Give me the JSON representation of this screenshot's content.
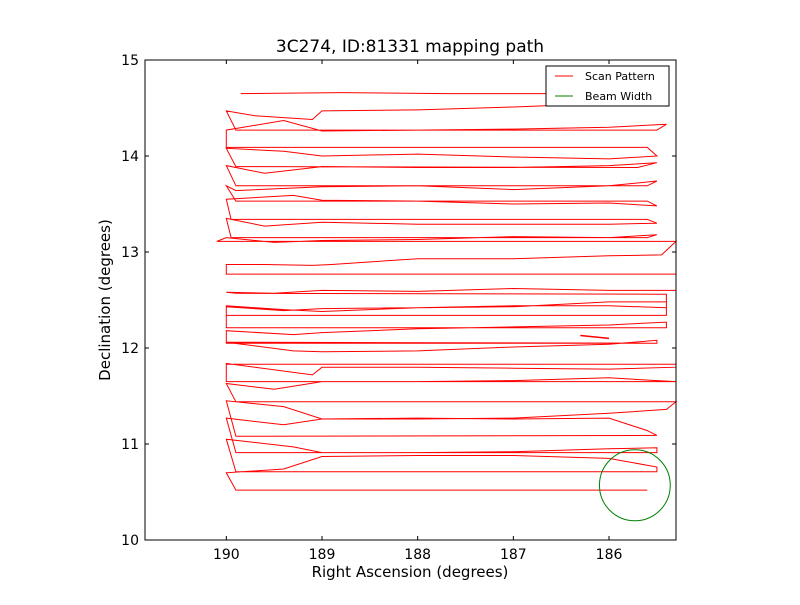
{
  "chart_data": {
    "type": "line",
    "title": "3C274, ID:81331 mapping path",
    "xlabel": "Right Ascension (degrees)",
    "ylabel": "Declination (degrees)",
    "xlim": [
      190.85,
      185.3
    ],
    "ylim": [
      10,
      15
    ],
    "x_inverted": true,
    "x_ticks": [
      190,
      189,
      188,
      187,
      186
    ],
    "y_ticks": [
      10,
      11,
      12,
      13,
      14,
      15
    ],
    "grid": false,
    "legend": {
      "placement": "top-right",
      "entries": [
        {
          "label": "Scan Pattern",
          "color": "#ff0000"
        },
        {
          "label": "Beam Width",
          "color": "#008000"
        }
      ]
    },
    "series": [
      {
        "name": "Scan Pattern",
        "color": "#ff0000",
        "x": [
          189.85,
          188.8,
          187.7,
          186.7,
          185.5,
          185.4,
          186.0,
          187.0,
          188.0,
          189.0,
          189.1,
          189.7,
          190.0,
          189.9,
          185.5,
          185.4,
          186.0,
          187.0,
          188.0,
          189.0,
          189.4,
          190.0,
          190.0,
          185.6,
          185.5,
          186.0,
          187.0,
          188.0,
          189.0,
          189.4,
          190.0,
          189.9,
          185.7,
          185.5,
          186.0,
          187.0,
          188.0,
          189.0,
          189.6,
          190.0,
          189.9,
          185.6,
          185.5,
          186.0,
          187.0,
          188.0,
          189.0,
          189.9,
          190.0,
          189.9,
          185.6,
          185.5,
          186.0,
          187.0,
          188.0,
          189.0,
          189.3,
          190.0,
          189.95,
          185.6,
          185.5,
          186.0,
          187.0,
          188.0,
          189.0,
          189.6,
          190.0,
          189.95,
          185.6,
          185.5,
          186.0,
          187.0,
          188.0,
          189.0,
          189.5,
          190.0,
          190.1,
          185.3,
          185.45,
          186.0,
          187.0,
          188.0,
          188.9,
          189.1,
          189.6,
          190.0,
          190.0,
          185.3,
          185.3,
          186.0,
          187.0,
          188.0,
          189.0,
          189.5,
          190.0,
          189.9,
          185.4,
          185.4,
          186.0,
          187.0,
          188.0,
          189.0,
          189.4,
          190.0,
          190.0,
          185.4,
          185.4,
          186.0,
          187.0,
          188.0,
          189.0,
          189.4,
          190.0,
          190.0,
          185.4,
          185.4,
          186.0,
          187.0,
          188.0,
          189.0,
          189.3,
          190.0,
          190.0,
          185.5,
          185.5,
          186.0,
          187.0,
          188.0,
          189.0,
          189.3,
          190.0,
          185.6
        ],
        "y": [
          14.65,
          14.66,
          14.65,
          14.65,
          14.66,
          14.52,
          14.55,
          14.51,
          14.48,
          14.47,
          14.38,
          14.42,
          14.47,
          14.27,
          14.27,
          14.33,
          14.3,
          14.28,
          14.27,
          14.26,
          14.37,
          14.27,
          14.09,
          14.09,
          14.0,
          13.97,
          13.99,
          14.02,
          14.0,
          14.05,
          14.08,
          13.89,
          13.88,
          13.93,
          13.9,
          13.88,
          13.88,
          13.89,
          13.82,
          13.9,
          13.69,
          13.69,
          13.74,
          13.69,
          13.65,
          13.69,
          13.68,
          13.64,
          13.69,
          13.53,
          13.53,
          13.48,
          13.51,
          13.5,
          13.53,
          13.54,
          13.59,
          13.55,
          13.34,
          13.34,
          13.3,
          13.29,
          13.29,
          13.29,
          13.31,
          13.27,
          13.35,
          13.15,
          13.15,
          13.18,
          13.15,
          13.16,
          13.13,
          13.12,
          13.1,
          13.15,
          13.11,
          13.11,
          12.97,
          12.96,
          12.93,
          12.93,
          12.87,
          12.86,
          12.87,
          12.87,
          12.77,
          12.77,
          12.6,
          12.6,
          12.62,
          12.59,
          12.6,
          12.57,
          12.58,
          12.57,
          12.56,
          12.42,
          12.44,
          12.44,
          12.42,
          12.38,
          12.4,
          12.44,
          12.34,
          12.34,
          12.48,
          12.48,
          12.43,
          12.42,
          12.41,
          12.39,
          12.43,
          12.21,
          12.21,
          12.27,
          12.24,
          12.22,
          12.2,
          12.16,
          12.14,
          12.18,
          12.05,
          12.05,
          12.08,
          12.04,
          12.01,
          11.97,
          11.96,
          11.97,
          12.06,
          12.05
        ],
        "extra_segments": [
          {
            "x": [
              190.0,
              185.3,
              185.3,
              186.0,
              187.0,
              188.0,
              189.0,
              189.1,
              190.0,
              190.0,
              185.3,
              185.5,
              186.0,
              187.0,
              188.0,
              189.0,
              189.5,
              190.0,
              189.9,
              185.3,
              185.4,
              186.0,
              187.0,
              188.0,
              189.0,
              189.4,
              190.0,
              189.9,
              185.5,
              185.6,
              186.0,
              187.0,
              188.0,
              189.0,
              189.4,
              190.0,
              189.9,
              185.5,
              185.5,
              186.0,
              187.0,
              188.0,
              189.0,
              189.3,
              190.0,
              189.9,
              185.5,
              185.5,
              186.0,
              187.0,
              188.0,
              189.0,
              189.4,
              190.0,
              189.9,
              185.6
            ],
            "y": [
              11.83,
              11.83,
              11.8,
              11.78,
              11.79,
              11.8,
              11.8,
              11.72,
              11.84,
              11.65,
              11.65,
              11.66,
              11.69,
              11.66,
              11.65,
              11.65,
              11.57,
              11.63,
              11.44,
              11.44,
              11.36,
              11.32,
              11.27,
              11.26,
              11.26,
              11.39,
              11.45,
              11.08,
              11.09,
              11.14,
              11.27,
              11.26,
              11.27,
              11.26,
              11.2,
              11.27,
              10.91,
              10.91,
              10.96,
              10.95,
              10.92,
              10.91,
              10.91,
              10.97,
              11.05,
              10.71,
              10.71,
              10.76,
              10.85,
              10.88,
              10.88,
              10.87,
              10.74,
              10.7,
              10.52,
              10.52
            ]
          }
        ]
      },
      {
        "name": "Beam Width",
        "color": "#008000",
        "center": [
          185.73,
          10.57
        ],
        "radius_deg": 0.37
      }
    ],
    "stray_segment": {
      "x": [
        186.3,
        186.0
      ],
      "y": [
        12.13,
        12.1
      ]
    }
  }
}
